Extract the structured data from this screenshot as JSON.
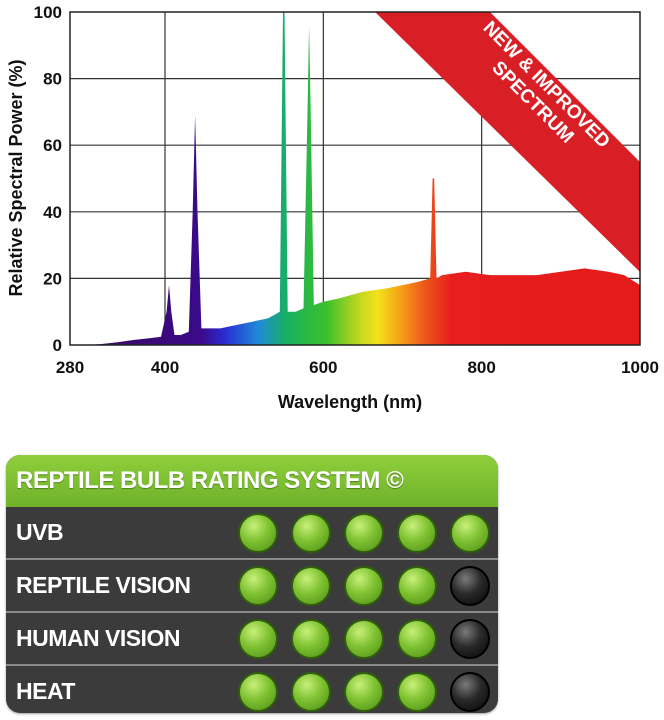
{
  "chart_data": {
    "type": "area",
    "xlabel": "Wavelength (nm)",
    "ylabel": "Relative Spectral Power (%)",
    "xlim": [
      280,
      1000
    ],
    "ylim": [
      0,
      100
    ],
    "xticks": [
      280,
      400,
      600,
      800,
      1000
    ],
    "yticks": [
      0,
      20,
      40,
      60,
      80,
      100
    ],
    "grid": true,
    "series": [
      {
        "x": [
          300,
          320,
          340,
          360,
          380,
          395,
          402,
          405,
          408,
          412,
          420,
          430,
          435,
          438,
          441,
          446,
          455,
          470,
          490,
          510,
          530,
          545,
          549,
          551,
          555,
          565,
          575,
          580,
          582,
          584,
          588,
          600,
          620,
          650,
          680,
          700,
          720,
          735,
          738,
          740,
          743,
          750,
          780,
          810,
          840,
          870,
          900,
          930,
          960,
          980,
          1000
        ],
        "y": [
          0,
          0.3,
          0.8,
          1.5,
          2,
          2.5,
          10,
          18,
          10,
          3,
          3,
          4,
          40,
          69,
          40,
          5,
          5,
          5,
          6,
          7,
          8,
          10,
          100,
          100,
          10,
          10,
          11,
          70,
          96,
          70,
          12,
          13,
          14,
          16,
          17,
          18,
          19,
          20,
          50,
          50,
          20,
          21,
          22,
          21,
          21,
          21,
          22,
          23,
          22,
          21,
          18
        ]
      }
    ],
    "annotation": "NEW & IMPROVED SPECTRUM"
  },
  "rating": {
    "title": "REPTILE BULB RATING SYSTEM ©",
    "rows": [
      {
        "label": "UVB",
        "score": 5
      },
      {
        "label": "REPTILE VISION",
        "score": 4
      },
      {
        "label": "HUMAN VISION",
        "score": 4
      },
      {
        "label": "HEAT",
        "score": 4
      }
    ],
    "max": 5,
    "colors": {
      "on": "#7fc232",
      "off": "#1a1a1a",
      "header": "#7dbf34",
      "panel": "#3b3b3b"
    }
  }
}
